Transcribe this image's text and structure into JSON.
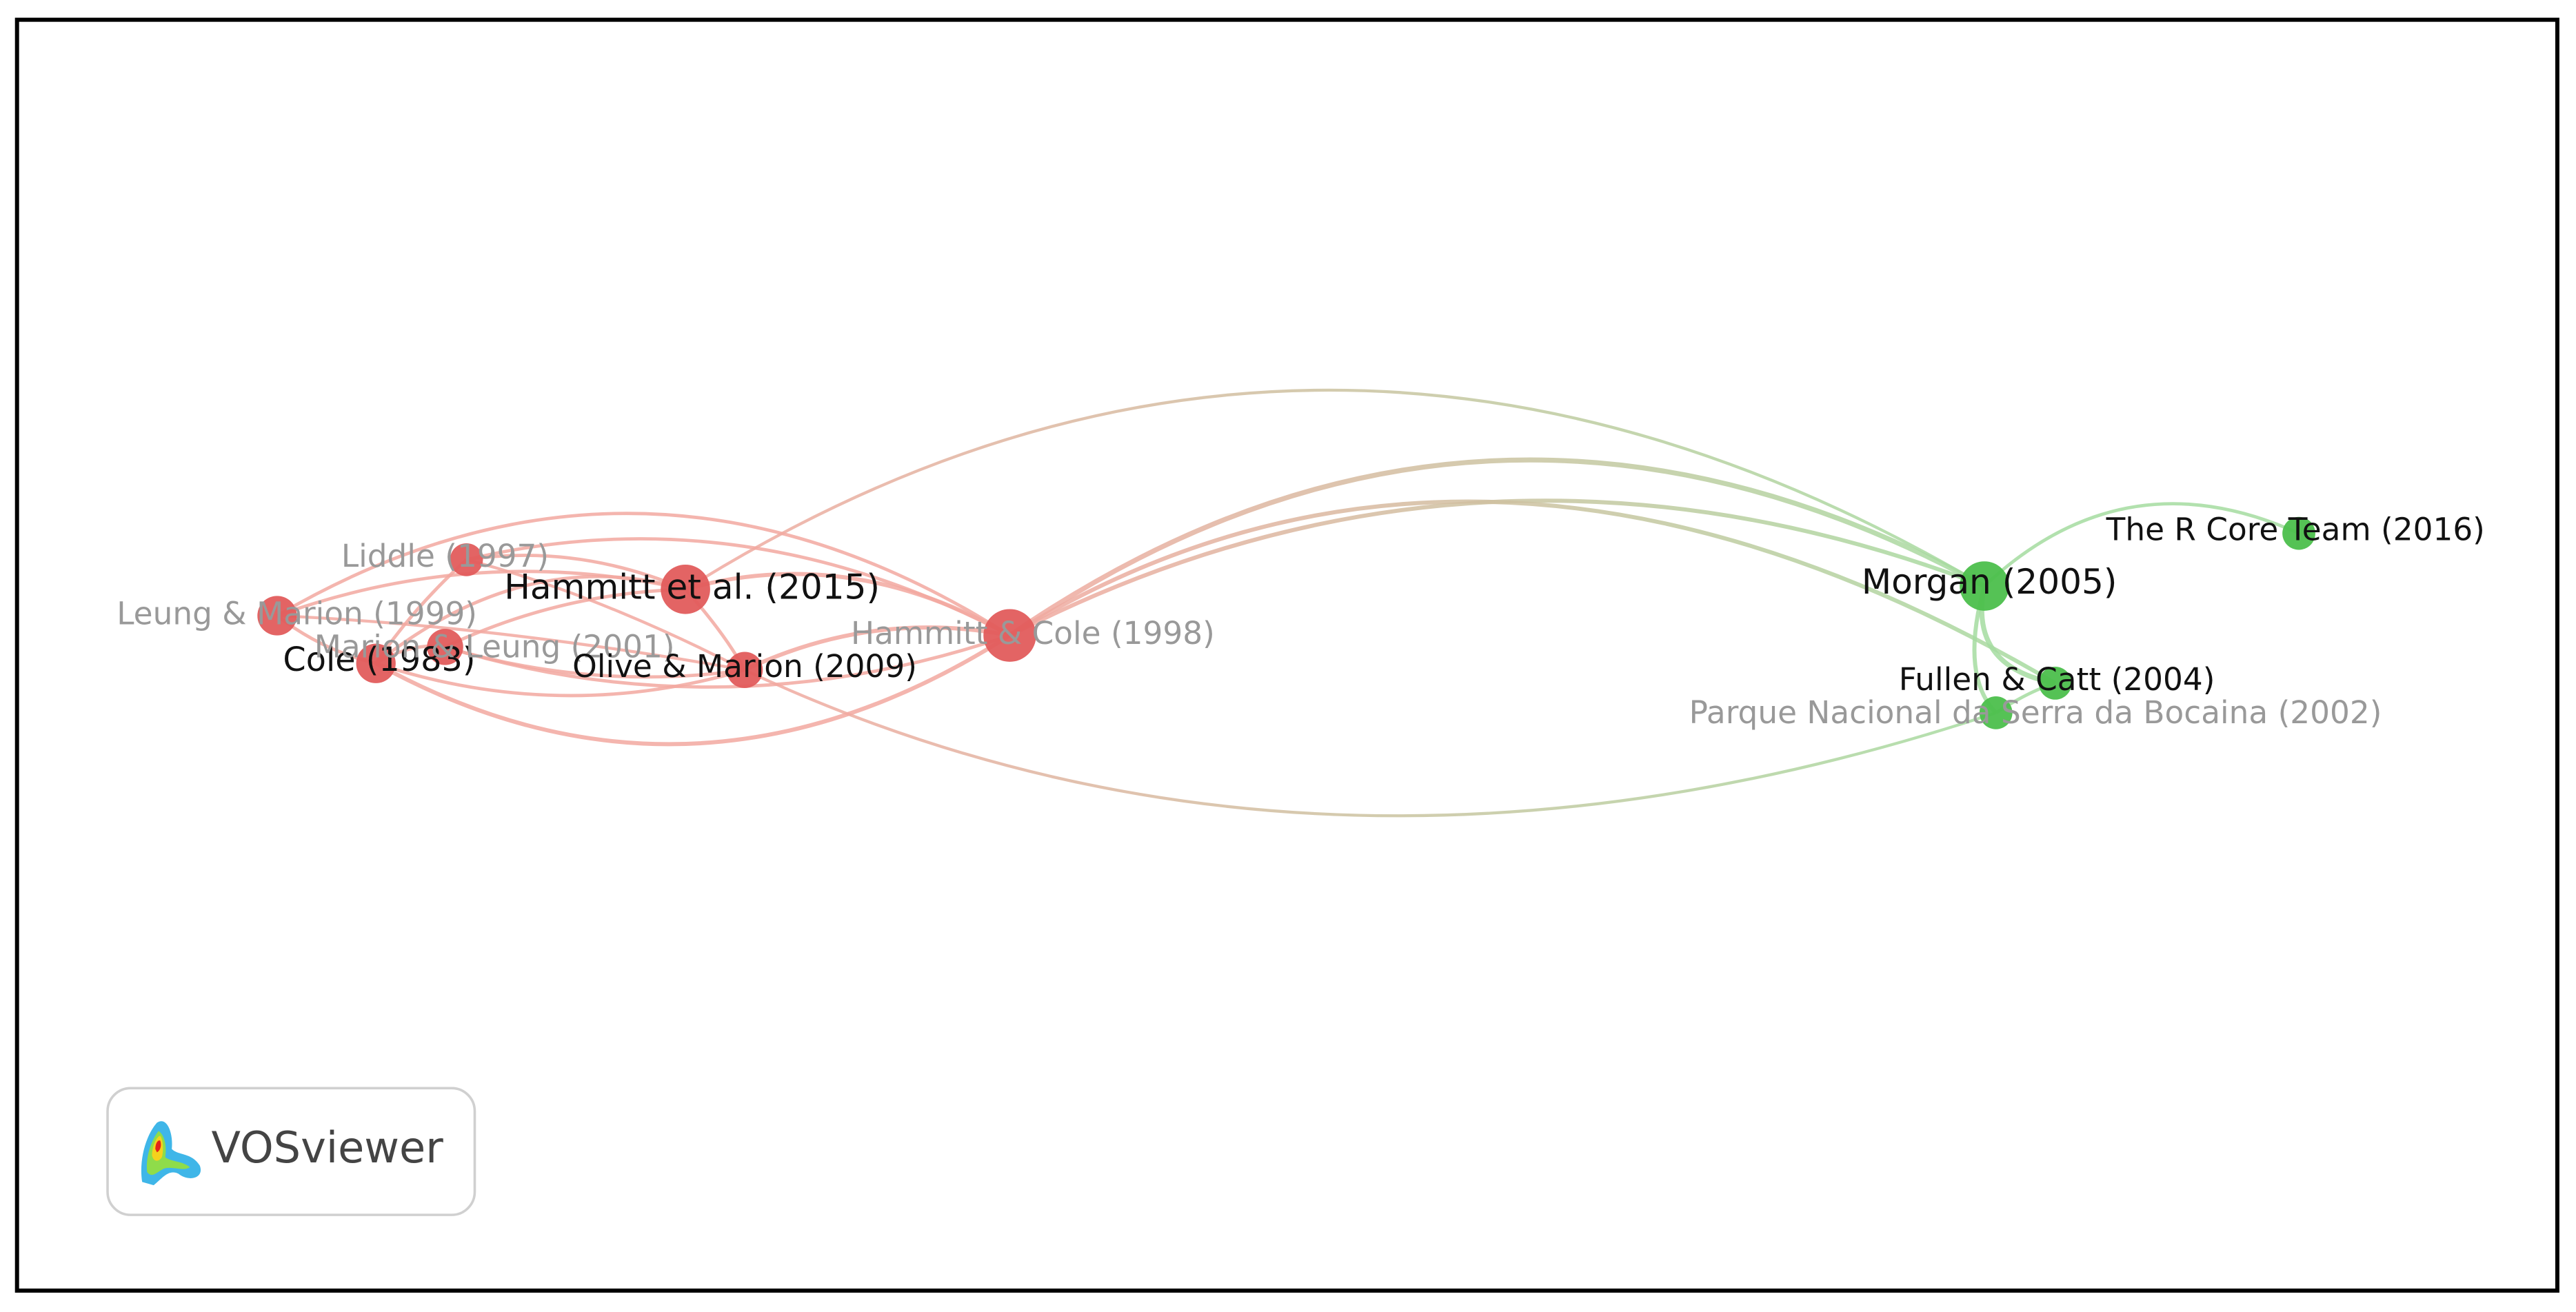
{
  "nodes": [
    {
      "label": "Leung & Marion (1999)"
    },
    {
      "label": "Liddle (1997)"
    },
    {
      "label": "Hammitt et al. (2015)"
    },
    {
      "label": "Cole (1983)"
    },
    {
      "label": "Marion & Leung (2001)"
    },
    {
      "label": "Olive & Marion (2009)"
    },
    {
      "label": "Hammitt & Cole (1998)"
    },
    {
      "label": "Morgan (2005)"
    },
    {
      "label": "The R Core Team (2016)"
    },
    {
      "label": "Fullen & Catt (2004)"
    },
    {
      "label": "Parque Nacional da Serra da Bocaina (2002)"
    }
  ],
  "logo": {
    "text": "VOSviewer"
  }
}
